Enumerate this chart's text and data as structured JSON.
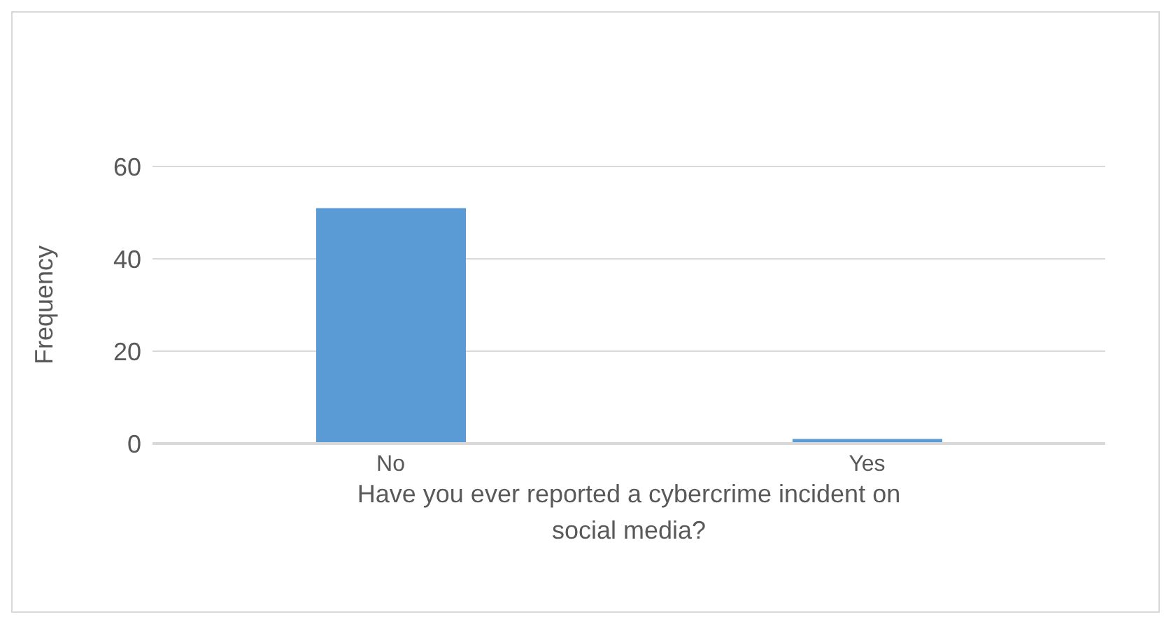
{
  "chart_data": {
    "type": "bar",
    "categories": [
      "No",
      "Yes"
    ],
    "values": [
      51,
      1
    ],
    "color": "#5b9bd5",
    "xlabel": "Have you ever reported a cybercrime incident on social media?",
    "ylabel": "Frequency",
    "ylim": [
      0,
      60
    ],
    "yticks": [
      0,
      20,
      40,
      60
    ],
    "grid": "y"
  }
}
